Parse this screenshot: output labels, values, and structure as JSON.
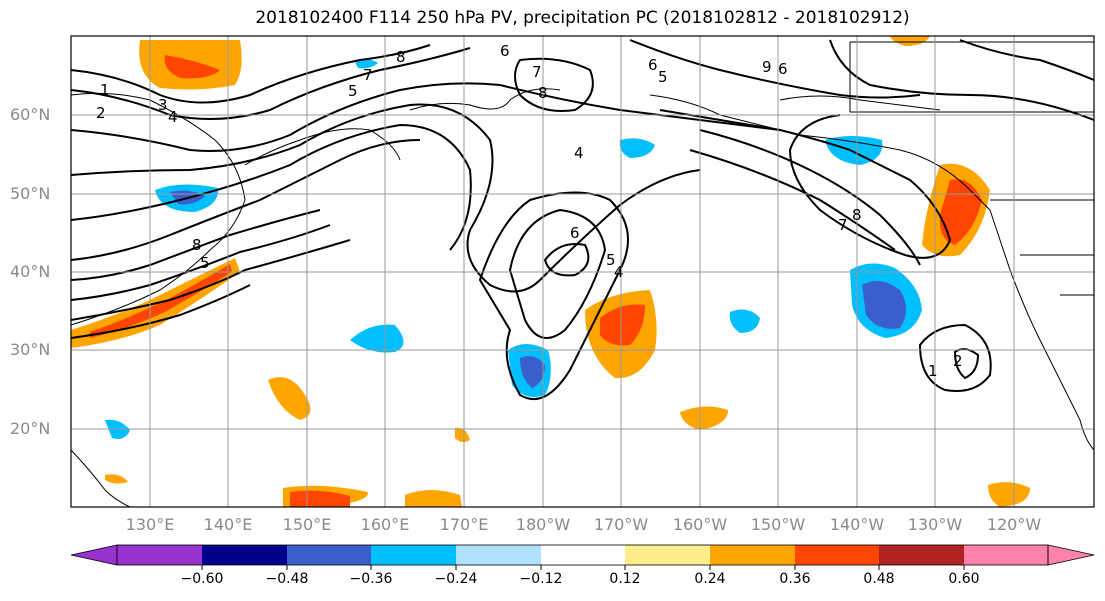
{
  "title": "2018102400 F114 250 hPa PV, precipitation PC (2018102812 - 2018102912)",
  "lat_labels": [
    "60°N",
    "50°N",
    "40°N",
    "30°N",
    "20°N"
  ],
  "lon_labels": [
    "130°E",
    "140°E",
    "150°E",
    "160°E",
    "170°E",
    "180°W",
    "170°W",
    "160°W",
    "150°W",
    "140°W",
    "130°W",
    "120°W"
  ],
  "contour_labels": [
    "1",
    "2",
    "3",
    "4",
    "5",
    "6",
    "7",
    "8",
    "8",
    "7",
    "6",
    "5",
    "4",
    "6",
    "4",
    "5",
    "8",
    "7",
    "6",
    "9",
    "1",
    "2",
    "8",
    "5"
  ],
  "colorbar": {
    "colors": [
      "#9932CC",
      "#00008B",
      "#3A5FCD",
      "#00BFFF",
      "#B0E2FF",
      "#FFFFFF",
      "#FFEC8B",
      "#FFA500",
      "#FF4500",
      "#B22222",
      "#FF82AB"
    ],
    "ticks": [
      "−0.60",
      "−0.48",
      "−0.36",
      "−0.24",
      "−0.12",
      "0.12",
      "0.24",
      "0.36",
      "0.48",
      "0.60"
    ]
  }
}
